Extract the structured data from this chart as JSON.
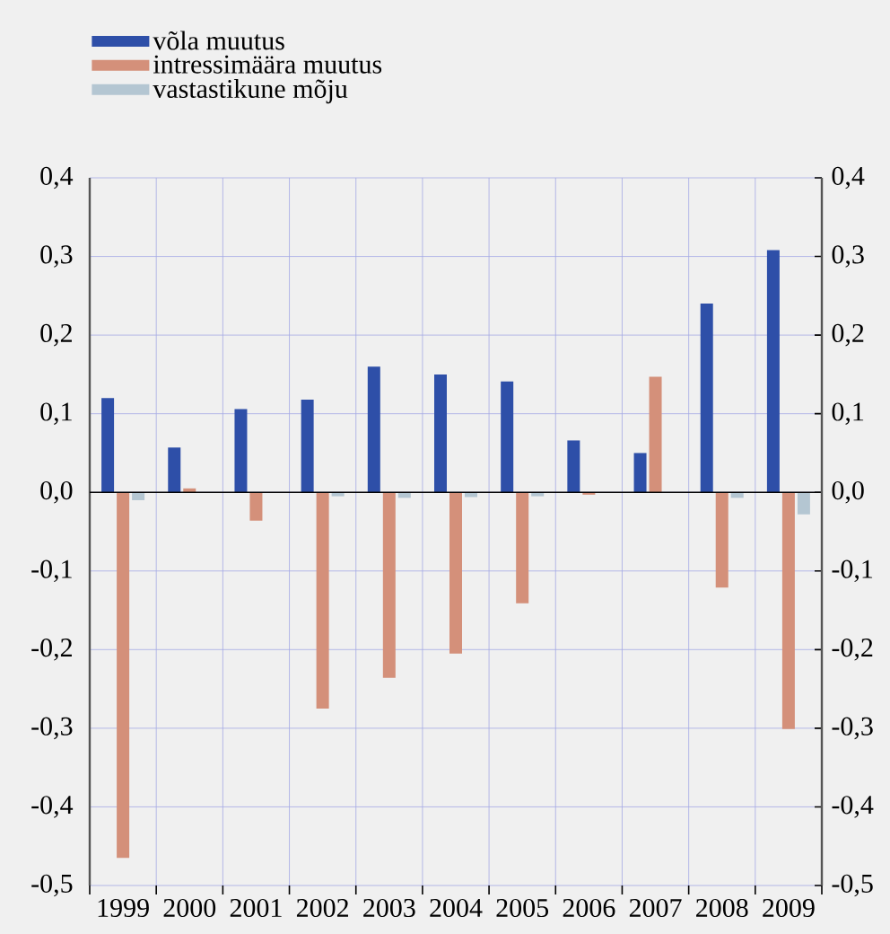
{
  "chart_data": {
    "type": "bar",
    "categories": [
      "1999",
      "2000",
      "2001",
      "2002",
      "2003",
      "2004",
      "2005",
      "2006",
      "2007",
      "2008",
      "2009"
    ],
    "series": [
      {
        "name": "võla muutus",
        "color": "#2e4fa8",
        "values": [
          0.12,
          0.057,
          0.106,
          0.118,
          0.16,
          0.15,
          0.141,
          0.066,
          0.05,
          0.24,
          0.308
        ]
      },
      {
        "name": "intressimäära muutus",
        "color": "#d4907a",
        "values": [
          -0.465,
          0.005,
          -0.036,
          -0.275,
          -0.236,
          -0.205,
          -0.141,
          -0.003,
          0.147,
          -0.121,
          -0.301
        ]
      },
      {
        "name": "vastastikune mõju",
        "color": "#b4c6d2",
        "values": [
          -0.01,
          0,
          null,
          -0.005,
          -0.007,
          -0.006,
          -0.005,
          0,
          null,
          -0.007,
          -0.028
        ]
      }
    ],
    "ylim": [
      -0.5,
      0.4
    ],
    "yticks": [
      {
        "value": -0.5,
        "label": "-0,5"
      },
      {
        "value": -0.4,
        "label": "-0,4"
      },
      {
        "value": -0.3,
        "label": "-0,3"
      },
      {
        "value": -0.2,
        "label": "-0,2"
      },
      {
        "value": -0.1,
        "label": "-0,1"
      },
      {
        "value": 0,
        "label": "0,0"
      },
      {
        "value": 0.1,
        "label": "0,1"
      },
      {
        "value": 0.2,
        "label": "0,2"
      },
      {
        "value": 0.3,
        "label": "0,3"
      },
      {
        "value": 0.4,
        "label": "0,4"
      }
    ],
    "y2lim": [
      -0.5,
      0.4
    ],
    "y2ticks": [
      {
        "value": -0.5,
        "label": "-0,5"
      },
      {
        "value": -0.4,
        "label": "-0,4"
      },
      {
        "value": -0.3,
        "label": "-0,3"
      },
      {
        "value": -0.2,
        "label": "-0,2"
      },
      {
        "value": -0.1,
        "label": "-0,1"
      },
      {
        "value": 0,
        "label": "0,0"
      },
      {
        "value": 0.1,
        "label": "0,1"
      },
      {
        "value": 0.2,
        "label": "0,2"
      },
      {
        "value": 0.3,
        "label": "0,3"
      },
      {
        "value": 0.4,
        "label": "0,4"
      }
    ],
    "grid": true,
    "legend": "top left"
  }
}
